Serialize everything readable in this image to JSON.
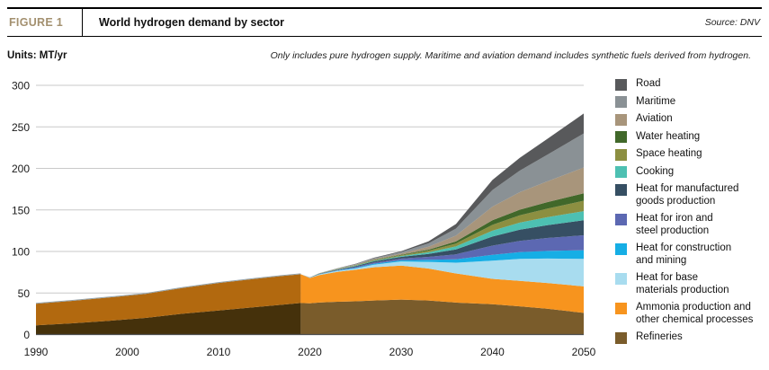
{
  "header": {
    "figure_label": "FIGURE 1",
    "title": "World hydrogen demand by sector",
    "source": "Source: DNV",
    "units": "Units: MT/yr",
    "note": "Only includes pure hydrogen supply. Maritime and aviation demand includes synthetic fuels derived from hydrogen."
  },
  "colors": {
    "figure_label": "#a3906f",
    "grid": "#c9c9c9",
    "axis": "#4d4d4d",
    "tick_text": "#1a1a1a",
    "historical_top_line": "#92a1a9"
  },
  "chart_data": {
    "type": "area",
    "stacked": true,
    "title": "World hydrogen demand by sector",
    "units": "MT/yr",
    "xlabel": "",
    "ylabel": "",
    "x_range": [
      1990,
      2050
    ],
    "ylim": [
      0,
      300
    ],
    "y_ticks": [
      0,
      50,
      100,
      150,
      200,
      250,
      300
    ],
    "x_ticks": [
      1990,
      2000,
      2010,
      2020,
      2030,
      2040,
      2050
    ],
    "grid": true,
    "legend_position": "right",
    "historical_until": 2019,
    "years": [
      1990,
      1994,
      1998,
      2002,
      2006,
      2010,
      2014,
      2017,
      2019,
      2020,
      2021,
      2023,
      2025,
      2027,
      2030,
      2033,
      2036,
      2040,
      2043,
      2046,
      2050
    ],
    "series": [
      {
        "name": "Refineries",
        "legend_label": "Refineries",
        "color": "#7a5c2b",
        "color_historical": "#45310b",
        "values": [
          11,
          13.5,
          16.5,
          20,
          25,
          29,
          33,
          36,
          38,
          37.5,
          38.5,
          39.5,
          40,
          41,
          42,
          41,
          38.5,
          36.5,
          34,
          31,
          26
        ]
      },
      {
        "name": "Ammonia production and other chemical processes",
        "legend_label": "Ammonia production and\nother chemical processes",
        "color": "#f7941e",
        "color_historical": "#b2690f",
        "values": [
          26,
          27,
          28,
          29,
          31,
          33,
          34,
          34.5,
          34.5,
          30.5,
          33,
          36,
          38,
          40,
          41,
          38.5,
          35,
          30.5,
          30.5,
          31,
          32
        ]
      },
      {
        "name": "Heat for base materials production",
        "legend_label": "Heat for base\nmaterials production",
        "color": "#a8dcef",
        "values": [
          0,
          0,
          0,
          0,
          0,
          0,
          0,
          0,
          0,
          0.3,
          0.8,
          1.2,
          1.5,
          3,
          5,
          8,
          13,
          22,
          26.5,
          29.5,
          33
        ]
      },
      {
        "name": "Heat for construction and mining",
        "legend_label": "Heat for construction\nand mining",
        "color": "#16aee5",
        "values": [
          0,
          0,
          0,
          0,
          0,
          0,
          0,
          0,
          0,
          0.1,
          0.2,
          0.4,
          0.8,
          1.1,
          1.5,
          2.5,
          4,
          7,
          8.2,
          9.2,
          10.5
        ]
      },
      {
        "name": "Heat for iron and steel production",
        "legend_label": "Heat for iron and\nsteel production",
        "color": "#5c68b2",
        "values": [
          0,
          0,
          0,
          0,
          0,
          0,
          0,
          0,
          0,
          0.1,
          0.3,
          0.5,
          1,
          1.5,
          2,
          3.5,
          6,
          11,
          13.5,
          15.5,
          18
        ]
      },
      {
        "name": "Heat for manufactured goods production",
        "legend_label": "Heat for manufactured\ngoods production",
        "color": "#364f63",
        "values": [
          0,
          0,
          0,
          0,
          0,
          0,
          0,
          0,
          0,
          0.1,
          0.3,
          0.5,
          1,
          1.5,
          2,
          3.5,
          6,
          11,
          13.5,
          15.5,
          18
        ]
      },
      {
        "name": "Cooking",
        "legend_label": "Cooking",
        "color": "#4dc0b2",
        "values": [
          0,
          0,
          0,
          0,
          0,
          0,
          0,
          0,
          0,
          0.05,
          0.15,
          0.3,
          0.5,
          0.7,
          1,
          2,
          3.5,
          7,
          8.5,
          9.5,
          11
        ]
      },
      {
        "name": "Space heating",
        "legend_label": "Space heating",
        "color": "#8c8f41",
        "values": [
          0,
          0,
          0,
          0,
          0,
          0,
          0,
          0,
          0,
          0.05,
          0.15,
          0.3,
          0.5,
          0.7,
          1,
          2,
          3.5,
          7,
          8.8,
          10.3,
          12.6
        ]
      },
      {
        "name": "Water heating",
        "legend_label": "Water heating",
        "color": "#41682a",
        "values": [
          0,
          0,
          0,
          0,
          0,
          0,
          0,
          0,
          0,
          0.05,
          0.1,
          0.2,
          0.3,
          0.4,
          0.6,
          1.2,
          2.5,
          5.6,
          6.8,
          7.8,
          9
        ]
      },
      {
        "name": "Aviation",
        "legend_label": "Aviation",
        "color": "#a8957b",
        "values": [
          0,
          0,
          0,
          0,
          0,
          0,
          0,
          0,
          0,
          0,
          0.1,
          0.3,
          0.5,
          0.9,
          1.5,
          3.5,
          7,
          16.4,
          21,
          25,
          31
        ]
      },
      {
        "name": "Maritime",
        "legend_label": "Maritime",
        "color": "#8a9195",
        "values": [
          0,
          0,
          0,
          0,
          0,
          0,
          0,
          0,
          0,
          0,
          0.1,
          0.4,
          0.7,
          1,
          1.7,
          4,
          8.5,
          20,
          26,
          32,
          41
        ]
      },
      {
        "name": "Road",
        "legend_label": "Road",
        "color": "#58595b",
        "values": [
          0,
          0,
          0,
          0,
          0,
          0,
          0,
          0,
          0,
          0,
          0.05,
          0.2,
          0.4,
          0.6,
          1,
          2.5,
          5.5,
          12,
          15.5,
          19,
          24
        ]
      }
    ]
  }
}
